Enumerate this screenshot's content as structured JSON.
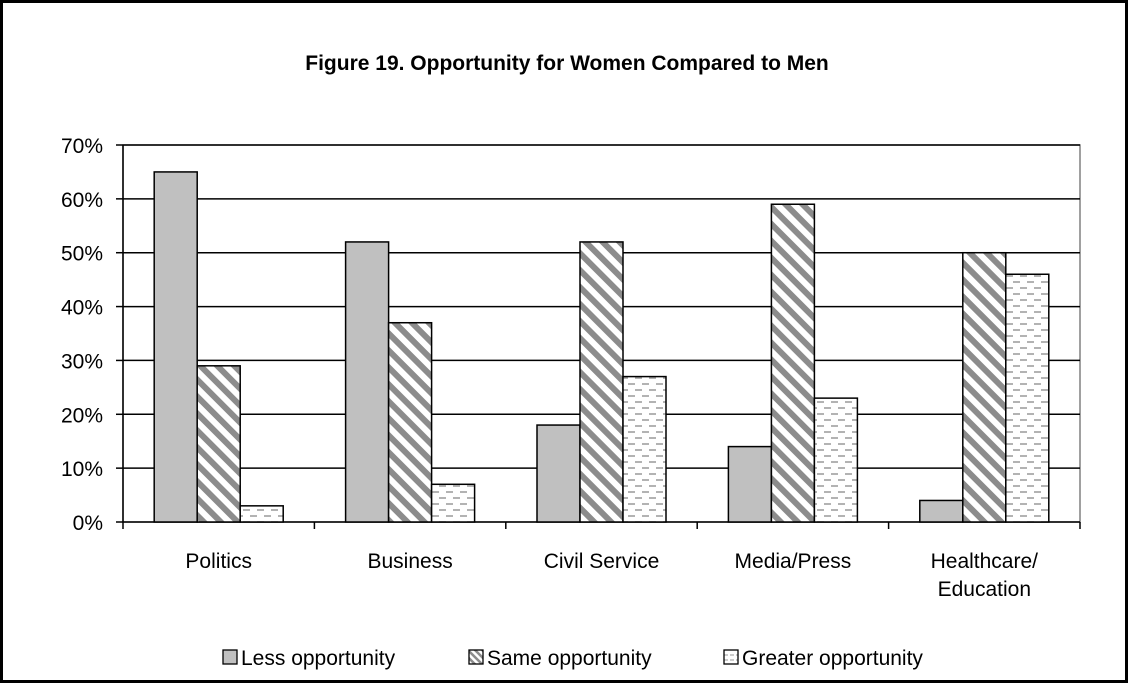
{
  "chart_data": {
    "type": "bar",
    "title": "Figure 19. Opportunity for Women Compared to Men",
    "xlabel": "",
    "ylabel": "",
    "categories": [
      "Politics",
      "Business",
      "Civil Service",
      "Media/Press",
      "Healthcare/\nEducation"
    ],
    "series": [
      {
        "name": "Less opportunity",
        "pattern": "solid-gray",
        "color": "#c0c0c0",
        "values": [
          65,
          52,
          18,
          14,
          4
        ]
      },
      {
        "name": "Same opportunity",
        "pattern": "diagonal-hatch",
        "color": "#808080",
        "values": [
          29,
          37,
          52,
          59,
          50
        ]
      },
      {
        "name": "Greater opportunity",
        "pattern": "dashed-dots",
        "color": "#a0a0a0",
        "values": [
          3,
          7,
          27,
          23,
          46
        ]
      }
    ],
    "ylim": [
      0,
      70
    ],
    "yticks": [
      "0%",
      "10%",
      "20%",
      "30%",
      "40%",
      "50%",
      "60%",
      "70%"
    ],
    "grid": true,
    "legend_position": "bottom"
  }
}
